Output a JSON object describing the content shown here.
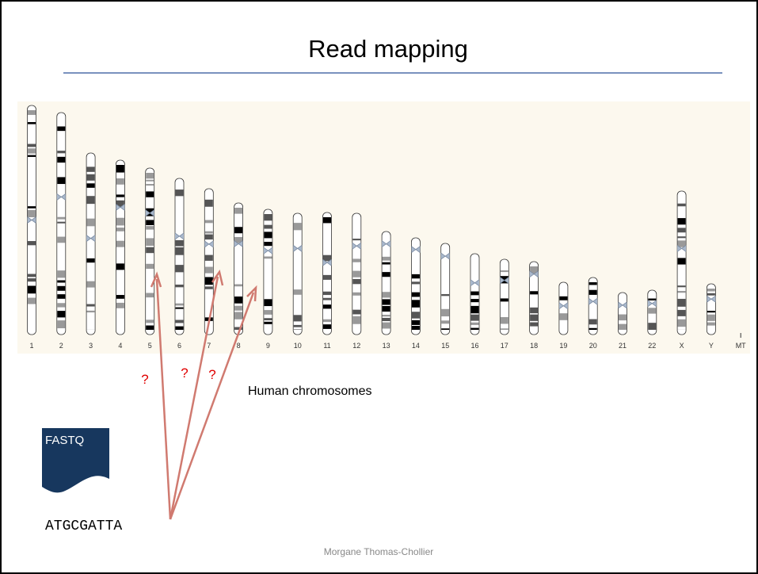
{
  "title": "Read mapping",
  "chromosome_labels": [
    "1",
    "2",
    "3",
    "4",
    "5",
    "6",
    "7",
    "8",
    "9",
    "10",
    "11",
    "12",
    "13",
    "14",
    "15",
    "16",
    "17",
    "18",
    "19",
    "20",
    "21",
    "22",
    "X",
    "Y",
    "MT"
  ],
  "question_marks": [
    "?",
    "?",
    "?"
  ],
  "caption": "Human chromosomes",
  "file_label": "FASTQ",
  "read": "ATGCGATTA",
  "footer": "Morgane Thomas-Chollier"
}
